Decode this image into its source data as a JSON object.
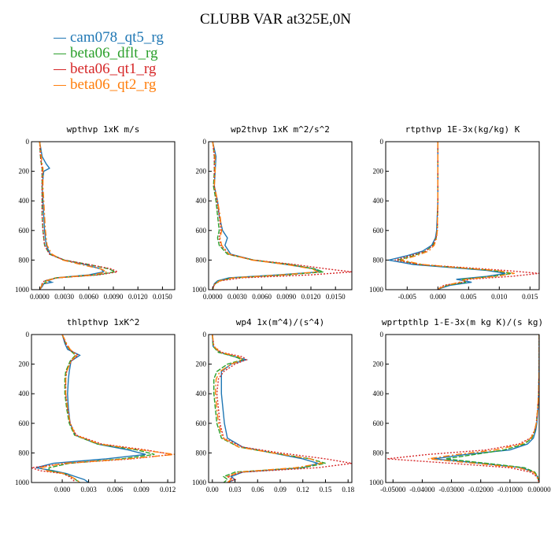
{
  "title": "CLUBB VAR at325E,0N",
  "series": [
    {
      "name": "cam078_qt5_rg",
      "color": "#1f77b4",
      "dash": ""
    },
    {
      "name": "beta06_dflt_rg",
      "color": "#2ca02c",
      "dash": "6,2"
    },
    {
      "name": "beta06_qt1_rg",
      "color": "#d62728",
      "dash": "2,2"
    },
    {
      "name": "beta06_qt2_rg",
      "color": "#ff7f0e",
      "dash": "8,3,2,3"
    }
  ],
  "chart_data": [
    {
      "type": "line",
      "title": "wpthvp  1xK m/s",
      "xlim": [
        -0.001,
        0.0165
      ],
      "ylim": [
        1000,
        0
      ],
      "yticks": [
        0,
        200,
        400,
        600,
        800,
        1000
      ],
      "xtick_values": [
        0,
        0.003,
        0.006,
        0.009,
        0.012,
        0.015
      ],
      "xtick_labels": [
        "0.0000",
        "0.0030",
        "0.0060",
        "0.0090",
        "0.0120",
        "0.0150"
      ],
      "y": [
        0,
        100,
        150,
        180,
        200,
        300,
        400,
        500,
        600,
        700,
        760,
        800,
        830,
        860,
        880,
        900,
        920,
        940,
        950,
        960,
        980,
        1000
      ],
      "series_values": [
        [
          0,
          0.0003,
          0.0008,
          0.0012,
          0.0005,
          0.0003,
          0.0004,
          0.0005,
          0.0006,
          0.0008,
          0.0013,
          0.003,
          0.0055,
          0.0075,
          0.0078,
          0.006,
          0.002,
          0.001,
          0.0015,
          0.0005,
          0.0003,
          0
        ],
        [
          0,
          0.0001,
          0.0002,
          0.0003,
          0.0003,
          0.0003,
          0.0003,
          0.0003,
          0.0004,
          0.0006,
          0.0012,
          0.003,
          0.006,
          0.0085,
          0.0092,
          0.007,
          0.002,
          0.0007,
          0.0008,
          0.0003,
          0.0002,
          0
        ],
        [
          0,
          0.0001,
          0.0002,
          0.0003,
          0.0003,
          0.0003,
          0.0003,
          0.0003,
          0.0004,
          0.0006,
          0.0012,
          0.003,
          0.006,
          0.0088,
          0.0095,
          0.0072,
          0.0022,
          0.0006,
          0.0004,
          0.0003,
          0.0002,
          0
        ],
        [
          0,
          0.0002,
          0.0003,
          0.0004,
          0.0004,
          0.0004,
          0.0005,
          0.0006,
          0.0007,
          0.0009,
          0.0015,
          0.0028,
          0.005,
          0.0075,
          0.0082,
          0.0065,
          0.002,
          0.0009,
          0.001,
          0.0004,
          0.0002,
          0
        ]
      ]
    },
    {
      "type": "line",
      "title": "wp2thvp  1xK m^2/s^2",
      "xlim": [
        -0.0005,
        0.017
      ],
      "ylim": [
        1000,
        0
      ],
      "yticks": [
        0,
        200,
        400,
        600,
        800,
        1000
      ],
      "xtick_values": [
        0,
        0.003,
        0.006,
        0.009,
        0.012,
        0.015
      ],
      "xtick_labels": [
        "0.0000",
        "0.0030",
        "0.0060",
        "0.0090",
        "0.0120",
        "0.0150"
      ],
      "y": [
        0,
        100,
        200,
        300,
        400,
        500,
        600,
        650,
        700,
        760,
        800,
        830,
        860,
        880,
        900,
        920,
        940,
        960,
        980,
        1000
      ],
      "series_values": [
        [
          0,
          0.0004,
          0.0003,
          0.0002,
          0.0006,
          0.0008,
          0.0012,
          0.0018,
          0.0015,
          0.0022,
          0.005,
          0.009,
          0.0125,
          0.013,
          0.008,
          0.002,
          0.0006,
          0.0002,
          0.0001,
          0
        ],
        [
          0,
          0.0002,
          0.0002,
          0.0001,
          0.0004,
          0.0006,
          0.0008,
          0.0006,
          0.0008,
          0.0018,
          0.005,
          0.0095,
          0.0125,
          0.0135,
          0.009,
          0.0025,
          0.0008,
          0.0003,
          0.0001,
          0
        ],
        [
          0,
          0.0002,
          0.0002,
          0.0002,
          0.0005,
          0.0008,
          0.001,
          0.0008,
          0.001,
          0.002,
          0.005,
          0.01,
          0.014,
          0.017,
          0.012,
          0.0035,
          0.001,
          0.0003,
          0.0001,
          0
        ],
        [
          0,
          0.0003,
          0.0003,
          0.0002,
          0.0006,
          0.0009,
          0.0011,
          0.0009,
          0.0011,
          0.002,
          0.0048,
          0.009,
          0.0122,
          0.0128,
          0.0085,
          0.0025,
          0.0009,
          0.0003,
          0.0001,
          0
        ]
      ]
    },
    {
      "type": "line",
      "title": "rtpthvp  1E-3x(kg/kg) K",
      "xlim": [
        -0.0085,
        0.0165
      ],
      "ylim": [
        1000,
        0
      ],
      "yticks": [
        0,
        200,
        400,
        600,
        800,
        1000
      ],
      "xtick_values": [
        -0.005,
        0,
        0.005,
        0.01,
        0.015
      ],
      "xtick_labels": [
        "-0.005",
        "0.000",
        "0.005",
        "0.010",
        "0.015"
      ],
      "y": [
        0,
        200,
        400,
        600,
        650,
        700,
        740,
        770,
        800,
        830,
        850,
        870,
        890,
        910,
        930,
        950,
        970,
        990,
        1000
      ],
      "series_values": [
        [
          0,
          0,
          0,
          -0.0002,
          -0.0004,
          -0.001,
          -0.0025,
          -0.005,
          -0.008,
          -0.004,
          0.002,
          0.008,
          0.011,
          0.008,
          0.003,
          0.0055,
          0.002,
          0.0005,
          0
        ],
        [
          0,
          0,
          0,
          -0.0001,
          -0.0003,
          -0.0008,
          -0.002,
          -0.004,
          -0.0065,
          -0.003,
          0.003,
          0.009,
          0.012,
          0.009,
          0.004,
          0.0045,
          0.0015,
          0.0003,
          0
        ],
        [
          0,
          0,
          0,
          -0.0001,
          -0.0003,
          -0.0008,
          -0.002,
          -0.0045,
          -0.007,
          -0.003,
          0.004,
          0.011,
          0.0165,
          0.012,
          0.005,
          0.004,
          0.001,
          0.0002,
          0
        ],
        [
          0,
          0,
          0,
          -0.0001,
          -0.0002,
          -0.0006,
          -0.0015,
          -0.0035,
          -0.006,
          -0.0025,
          0.003,
          0.0095,
          0.0125,
          0.0095,
          0.0045,
          0.0035,
          0.0015,
          0.0003,
          0
        ]
      ]
    },
    {
      "type": "line",
      "title": "thlpthvp  1xK^2",
      "xlim": [
        -0.0035,
        0.0128
      ],
      "ylim": [
        1000,
        0
      ],
      "yticks": [
        0,
        200,
        400,
        600,
        800,
        1000
      ],
      "xtick_values": [
        0,
        0.003,
        0.006,
        0.009,
        0.012
      ],
      "xtick_labels": [
        "0.000",
        "0.003",
        "0.006",
        "0.009",
        "0.012"
      ],
      "y": [
        0,
        60,
        100,
        140,
        180,
        250,
        300,
        400,
        500,
        600,
        680,
        740,
        780,
        810,
        840,
        870,
        900,
        920,
        940,
        960,
        980,
        1000
      ],
      "series_values": [
        [
          0,
          0.0003,
          0.0006,
          0.002,
          0.001,
          0.0008,
          0.0007,
          0.0006,
          0.0007,
          0.0009,
          0.0015,
          0.004,
          0.0075,
          0.0095,
          0.005,
          -0.001,
          -0.003,
          -0.001,
          0.0005,
          0.0015,
          0.0025,
          0.003
        ],
        [
          0,
          0.0004,
          0.0008,
          0.0015,
          0.0009,
          0.0004,
          0.0003,
          0.0003,
          0.0005,
          0.0008,
          0.0014,
          0.004,
          0.0085,
          0.0105,
          0.0068,
          0.0008,
          -0.0015,
          -0.0015,
          0.0002,
          0.001,
          0.0015,
          0.002
        ],
        [
          0,
          0.0004,
          0.0008,
          0.0018,
          0.001,
          0.0005,
          0.0004,
          0.0004,
          0.0006,
          0.0009,
          0.0016,
          0.0045,
          0.0095,
          0.0125,
          0.008,
          0.0005,
          -0.0035,
          -0.0025,
          0.0001,
          0.0008,
          0.0012,
          0.0015
        ],
        [
          0,
          0.0005,
          0.0009,
          0.0016,
          0.001,
          0.0005,
          0.0004,
          0.0004,
          0.0006,
          0.0009,
          0.0015,
          0.0042,
          0.009,
          0.0128,
          0.0075,
          0.0002,
          -0.0025,
          -0.0018,
          0.0002,
          0.001,
          0.0016,
          0.002
        ]
      ]
    },
    {
      "type": "line",
      "title": "wp4  1x(m^4)/(s^4)",
      "xlim": [
        -0.005,
        0.185
      ],
      "ylim": [
        1000,
        0
      ],
      "yticks": [
        0,
        200,
        400,
        600,
        800,
        1000
      ],
      "xtick_values": [
        0,
        0.03,
        0.06,
        0.09,
        0.12,
        0.15,
        0.18
      ],
      "xtick_labels": [
        "0.00",
        "0.03",
        "0.06",
        "0.09",
        "0.12",
        "0.15",
        "0.18"
      ],
      "y": [
        0,
        80,
        120,
        150,
        170,
        200,
        250,
        300,
        400,
        500,
        600,
        700,
        760,
        800,
        840,
        870,
        900,
        930,
        960,
        980,
        1000
      ],
      "series_values": [
        [
          0,
          0.001,
          0.01,
          0.03,
          0.045,
          0.025,
          0.012,
          0.012,
          0.012,
          0.014,
          0.016,
          0.02,
          0.04,
          0.08,
          0.12,
          0.14,
          0.12,
          0.04,
          0.025,
          0.03,
          0.02
        ],
        [
          0,
          0.001,
          0.008,
          0.03,
          0.04,
          0.02,
          0.006,
          0.002,
          0.002,
          0.004,
          0.006,
          0.012,
          0.035,
          0.08,
          0.13,
          0.15,
          0.12,
          0.03,
          0.015,
          0.02,
          0.015
        ],
        [
          0,
          0.002,
          0.012,
          0.04,
          0.045,
          0.03,
          0.015,
          0.008,
          0.006,
          0.008,
          0.01,
          0.015,
          0.04,
          0.09,
          0.15,
          0.185,
          0.14,
          0.04,
          0.02,
          0.03,
          0.02
        ],
        [
          0,
          0.002,
          0.01,
          0.035,
          0.04,
          0.025,
          0.01,
          0.005,
          0.004,
          0.006,
          0.008,
          0.014,
          0.035,
          0.08,
          0.13,
          0.145,
          0.11,
          0.035,
          0.02,
          0.025,
          0.02
        ]
      ]
    },
    {
      "type": "line",
      "title": "wprtpthlp  1-E-3x(m kg K)/(s kg)",
      "xlim": [
        -0.0525,
        0
      ],
      "ylim": [
        1000,
        0
      ],
      "yticks": [
        0,
        200,
        400,
        600,
        800,
        1000
      ],
      "xtick_values": [
        -0.05,
        -0.04,
        -0.03,
        -0.02,
        -0.01,
        0
      ],
      "xtick_labels": [
        "-0.05000",
        "-0.04000",
        "-0.03000",
        "-0.02000",
        "-0.01000",
        "0.00000"
      ],
      "y": [
        0,
        200,
        400,
        500,
        600,
        650,
        700,
        740,
        780,
        810,
        840,
        870,
        900,
        930,
        960,
        1000
      ],
      "series_values": [
        [
          0,
          0,
          -0.0002,
          -0.0004,
          -0.0008,
          -0.0012,
          -0.002,
          -0.004,
          -0.01,
          -0.025,
          -0.036,
          -0.02,
          -0.006,
          -0.002,
          -0.0006,
          0
        ],
        [
          0,
          0,
          -0.0002,
          -0.0005,
          -0.001,
          -0.0015,
          -0.0025,
          -0.005,
          -0.012,
          -0.022,
          -0.032,
          -0.018,
          -0.005,
          -0.0015,
          -0.0005,
          0
        ],
        [
          0,
          0,
          -0.0002,
          -0.0005,
          -0.001,
          -0.0016,
          -0.003,
          -0.007,
          -0.018,
          -0.038,
          -0.052,
          -0.03,
          -0.01,
          -0.003,
          -0.0008,
          0
        ],
        [
          0,
          0,
          -0.0002,
          -0.0005,
          -0.001,
          -0.0016,
          -0.0028,
          -0.006,
          -0.015,
          -0.028,
          -0.038,
          -0.022,
          -0.007,
          -0.002,
          -0.0006,
          0
        ]
      ]
    }
  ]
}
